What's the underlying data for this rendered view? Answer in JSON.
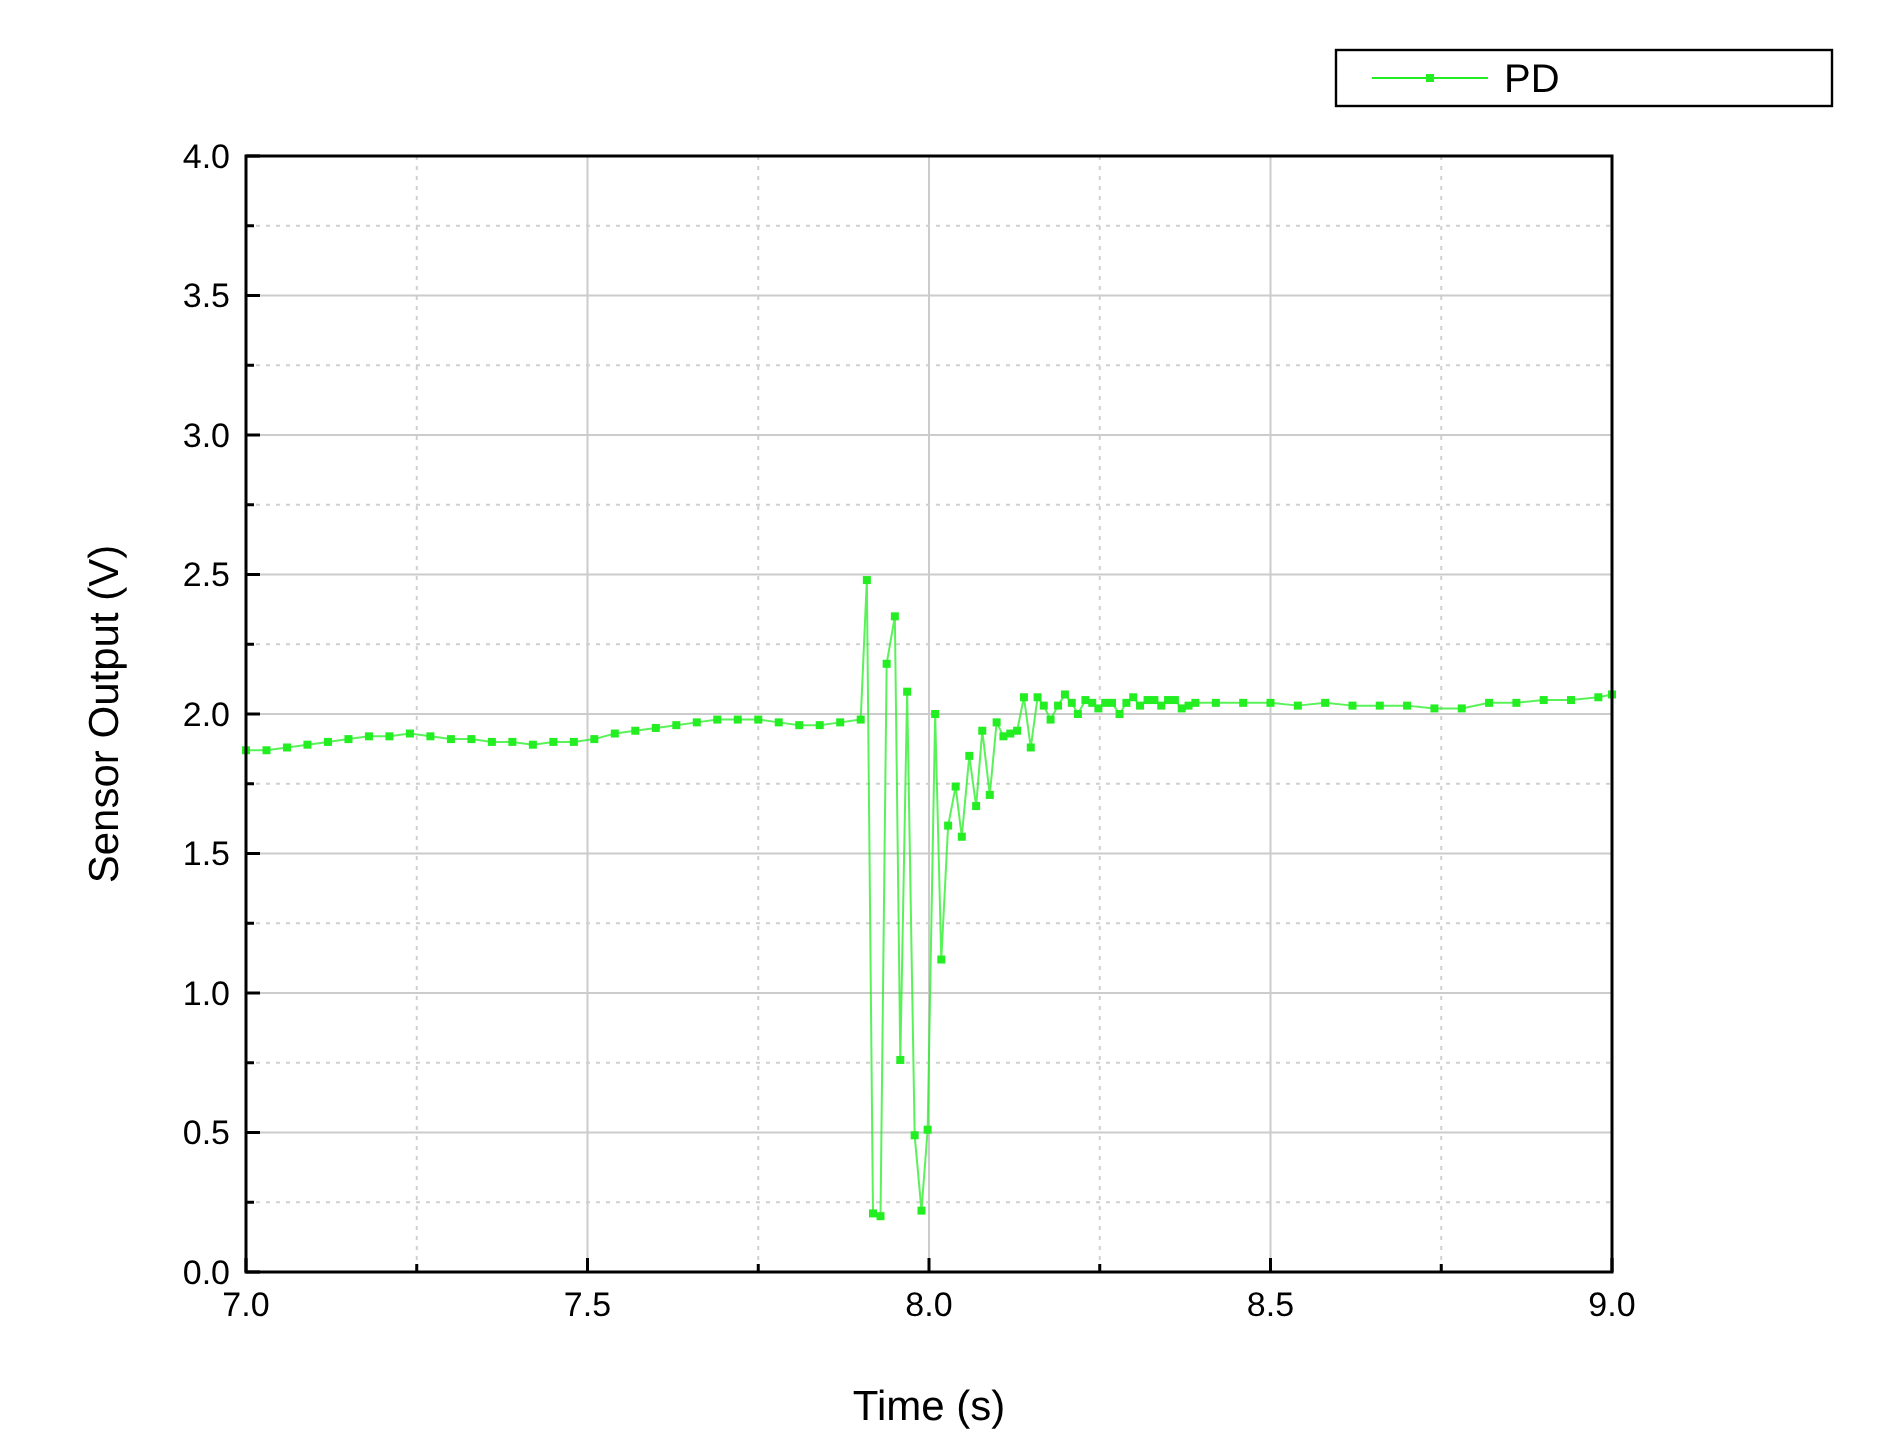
{
  "chart_data": {
    "type": "line",
    "xlabel": "Time (s)",
    "ylabel": "Sensor Output (V)",
    "xlim": [
      7.0,
      9.0
    ],
    "ylim": [
      0.0,
      4.0
    ],
    "xticks": [
      {
        "value": 7.0,
        "label": "7.0"
      },
      {
        "value": 7.25,
        "label": null
      },
      {
        "value": 7.5,
        "label": "7.5"
      },
      {
        "value": 7.75,
        "label": null
      },
      {
        "value": 8.0,
        "label": "8.0"
      },
      {
        "value": 8.25,
        "label": null
      },
      {
        "value": 8.5,
        "label": "8.5"
      },
      {
        "value": 8.75,
        "label": null
      },
      {
        "value": 9.0,
        "label": "9.0"
      }
    ],
    "yticks": [
      {
        "value": 0.0,
        "label": "0.0"
      },
      {
        "value": 0.25,
        "label": null
      },
      {
        "value": 0.5,
        "label": "0.5"
      },
      {
        "value": 0.75,
        "label": null
      },
      {
        "value": 1.0,
        "label": "1.0"
      },
      {
        "value": 1.25,
        "label": null
      },
      {
        "value": 1.5,
        "label": "1.5"
      },
      {
        "value": 1.75,
        "label": null
      },
      {
        "value": 2.0,
        "label": "2.0"
      },
      {
        "value": 2.25,
        "label": null
      },
      {
        "value": 2.5,
        "label": "2.5"
      },
      {
        "value": 2.75,
        "label": null
      },
      {
        "value": 3.0,
        "label": "3.0"
      },
      {
        "value": 3.25,
        "label": null
      },
      {
        "value": 3.5,
        "label": "3.5"
      },
      {
        "value": 3.75,
        "label": null
      },
      {
        "value": 4.0,
        "label": "4.0"
      }
    ],
    "grid": true,
    "legend": "top right",
    "marker": "square",
    "line_style": "solid",
    "series": [
      {
        "name": "PD",
        "color": "#22ee22",
        "x": [
          7.0,
          7.03,
          7.06,
          7.09,
          7.12,
          7.15,
          7.18,
          7.21,
          7.24,
          7.27,
          7.3,
          7.33,
          7.36,
          7.39,
          7.42,
          7.45,
          7.48,
          7.51,
          7.54,
          7.57,
          7.6,
          7.63,
          7.66,
          7.69,
          7.72,
          7.75,
          7.78,
          7.81,
          7.84,
          7.87,
          7.9,
          7.909,
          7.918,
          7.929,
          7.938,
          7.95,
          7.958,
          7.968,
          7.979,
          7.989,
          7.998,
          8.009,
          8.018,
          8.028,
          8.039,
          8.048,
          8.059,
          8.069,
          8.078,
          8.089,
          8.099,
          8.109,
          8.119,
          8.129,
          8.139,
          8.149,
          8.159,
          8.168,
          8.178,
          8.189,
          8.199,
          8.209,
          8.218,
          8.229,
          8.239,
          8.248,
          8.258,
          8.268,
          8.279,
          8.289,
          8.299,
          8.309,
          8.32,
          8.33,
          8.34,
          8.35,
          8.36,
          8.37,
          8.38,
          8.39,
          8.42,
          8.46,
          8.5,
          8.54,
          8.58,
          8.62,
          8.66,
          8.7,
          8.74,
          8.78,
          8.82,
          8.86,
          8.9,
          8.94,
          8.98,
          9.0
        ],
        "values": [
          1.87,
          1.87,
          1.88,
          1.89,
          1.9,
          1.91,
          1.92,
          1.92,
          1.93,
          1.92,
          1.91,
          1.91,
          1.9,
          1.9,
          1.89,
          1.9,
          1.9,
          1.91,
          1.93,
          1.94,
          1.95,
          1.96,
          1.97,
          1.98,
          1.98,
          1.98,
          1.97,
          1.96,
          1.96,
          1.97,
          1.98,
          2.48,
          0.21,
          0.2,
          2.18,
          2.35,
          0.76,
          2.08,
          0.49,
          0.22,
          0.51,
          2.0,
          1.12,
          1.6,
          1.74,
          1.56,
          1.85,
          1.67,
          1.94,
          1.71,
          1.97,
          1.92,
          1.93,
          1.94,
          2.06,
          1.88,
          2.06,
          2.03,
          1.98,
          2.03,
          2.07,
          2.04,
          2.0,
          2.05,
          2.04,
          2.02,
          2.04,
          2.04,
          2.0,
          2.04,
          2.06,
          2.03,
          2.05,
          2.05,
          2.03,
          2.05,
          2.05,
          2.02,
          2.03,
          2.04,
          2.04,
          2.04,
          2.04,
          2.03,
          2.04,
          2.03,
          2.03,
          2.03,
          2.02,
          2.02,
          2.04,
          2.04,
          2.05,
          2.05,
          2.06,
          2.07
        ]
      }
    ]
  }
}
